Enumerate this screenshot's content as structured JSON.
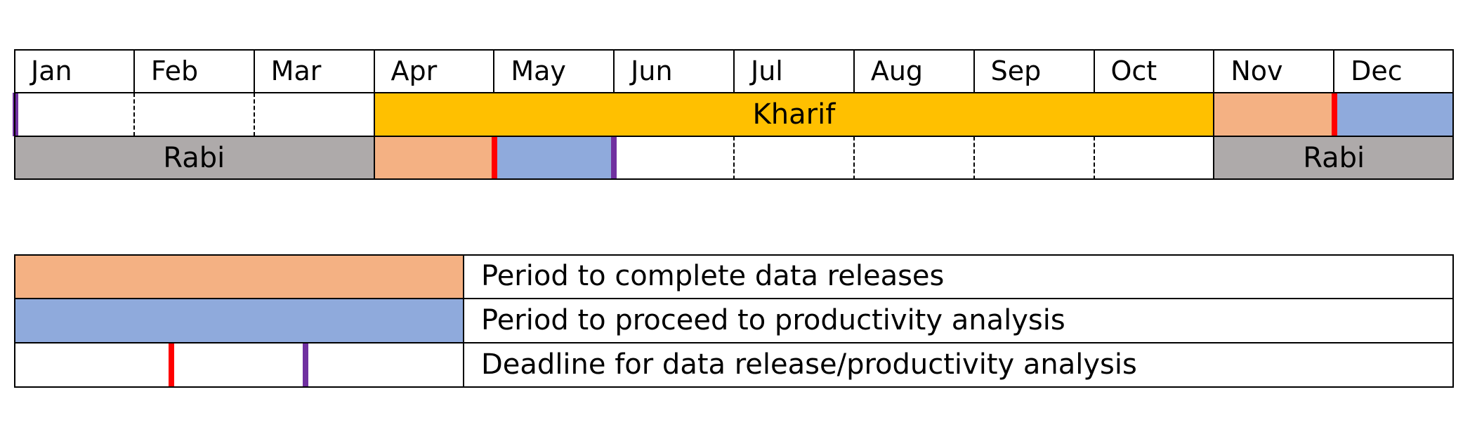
{
  "colors": {
    "kharif": "#FFC000",
    "rabi": "#AEAAAA",
    "data_release": "#F4B183",
    "productivity": "#8FAADC",
    "deadline_release": "#FF0000",
    "deadline_productivity": "#7030A0"
  },
  "calendar": {
    "months": [
      "Jan",
      "Feb",
      "Mar",
      "Apr",
      "May",
      "Jun",
      "Jul",
      "Aug",
      "Sep",
      "Oct",
      "Nov",
      "Dec"
    ],
    "kharif_label": "Kharif",
    "rabi_label_start": "Rabi",
    "rabi_label_end": "Rabi",
    "kharif_row": {
      "season_months": [
        4,
        10
      ],
      "data_release_month": 11,
      "productivity_month": 12,
      "deadline_release_at": 12,
      "deadline_productivity_at": 1
    },
    "rabi_row": {
      "season_months_start": [
        1,
        3
      ],
      "season_months_end": [
        11,
        12
      ],
      "data_release_month": 4,
      "productivity_month": 5,
      "deadline_release_at": 5,
      "deadline_productivity_at": 6
    }
  },
  "legend": {
    "items": [
      {
        "label": "Period to complete data releases"
      },
      {
        "label": "Period to proceed to productivity analysis"
      },
      {
        "label": "Deadline for data release/productivity analysis"
      }
    ]
  }
}
